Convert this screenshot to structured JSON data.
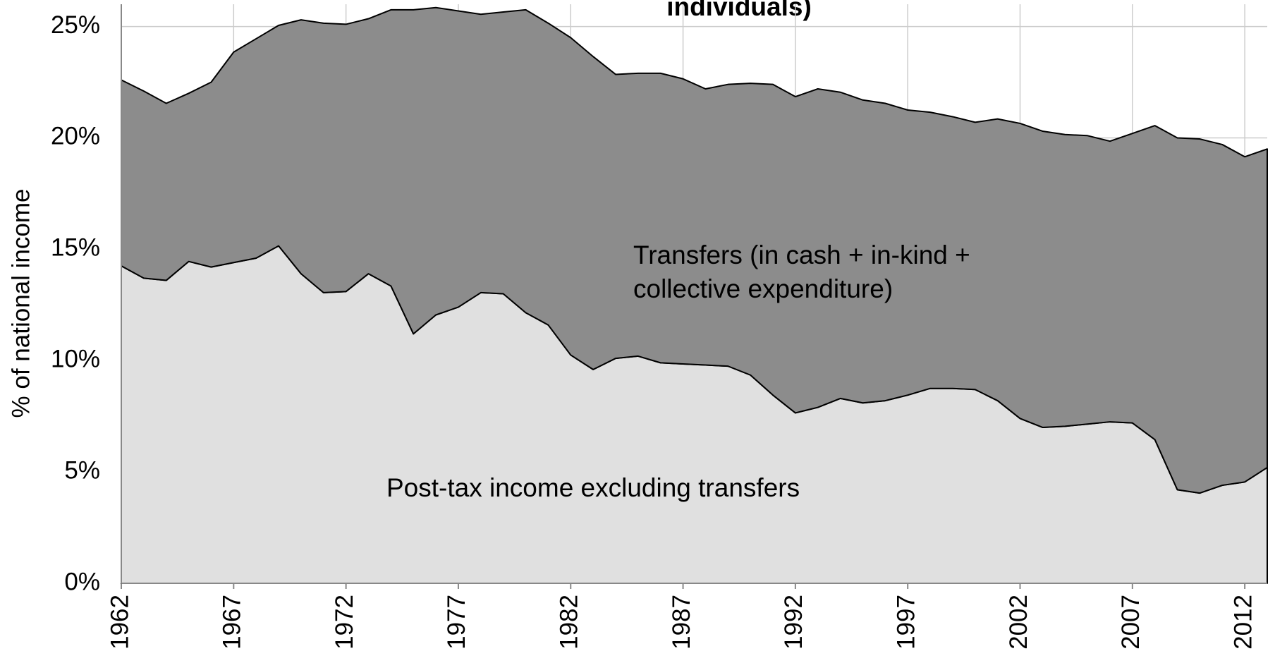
{
  "chart_data": {
    "type": "stacked_area",
    "title": "individuals)",
    "y_label": "%  of national income",
    "x": [
      1962,
      1963,
      1964,
      1965,
      1966,
      1967,
      1968,
      1969,
      1970,
      1971,
      1972,
      1973,
      1974,
      1975,
      1976,
      1977,
      1978,
      1979,
      1980,
      1981,
      1982,
      1983,
      1984,
      1985,
      1986,
      1987,
      1988,
      1989,
      1990,
      1991,
      1992,
      1993,
      1994,
      1995,
      1996,
      1997,
      1998,
      1999,
      2000,
      2001,
      2002,
      2003,
      2004,
      2005,
      2006,
      2007,
      2008,
      2009,
      2010,
      2011,
      2012,
      2013
    ],
    "series": [
      {
        "name": "Post-tax income excluding transfers",
        "color": "#e0e0e0",
        "values": [
          14.25,
          13.7,
          13.6,
          14.45,
          14.2,
          14.4,
          14.6,
          15.15,
          13.9,
          13.05,
          13.1,
          13.9,
          13.35,
          11.2,
          12.05,
          12.4,
          13.05,
          13.0,
          12.15,
          11.6,
          10.25,
          9.6,
          10.1,
          10.2,
          9.9,
          9.85,
          9.8,
          9.75,
          9.35,
          8.45,
          7.65,
          7.9,
          8.3,
          8.1,
          8.2,
          8.45,
          8.75,
          8.75,
          8.7,
          8.2,
          7.4,
          7.0,
          7.05,
          7.15,
          7.25,
          7.2,
          6.45,
          4.2,
          4.05,
          4.4,
          4.55,
          5.2
        ]
      },
      {
        "name": "Transfers (in cash + in-kind + collective expenditure)",
        "color": "#8c8c8c",
        "values": [
          8.35,
          8.4,
          7.95,
          7.55,
          8.3,
          9.45,
          9.85,
          9.9,
          11.4,
          12.1,
          12.0,
          11.45,
          12.4,
          14.55,
          13.8,
          13.3,
          12.5,
          12.65,
          13.6,
          13.55,
          14.25,
          14.05,
          12.75,
          12.7,
          13.0,
          12.8,
          12.4,
          12.65,
          13.1,
          13.95,
          14.2,
          14.3,
          13.75,
          13.6,
          13.35,
          12.8,
          12.4,
          12.2,
          12.0,
          12.65,
          13.25,
          13.3,
          13.1,
          12.95,
          12.6,
          13.0,
          14.1,
          15.8,
          15.9,
          15.3,
          14.6,
          14.3
        ]
      }
    ],
    "xlim": [
      1962,
      2013
    ],
    "xticks": [
      1962,
      1967,
      1972,
      1977,
      1982,
      1987,
      1992,
      1997,
      2002,
      2007,
      2012
    ],
    "ylim": [
      0,
      26
    ],
    "yticks": [
      {
        "value": 0,
        "label": "0%"
      },
      {
        "value": 5,
        "label": "5%"
      },
      {
        "value": 10,
        "label": "10%"
      },
      {
        "value": 15,
        "label": "15%"
      },
      {
        "value": 20,
        "label": "20%"
      },
      {
        "value": 25,
        "label": "25%"
      }
    ],
    "grid": true
  }
}
